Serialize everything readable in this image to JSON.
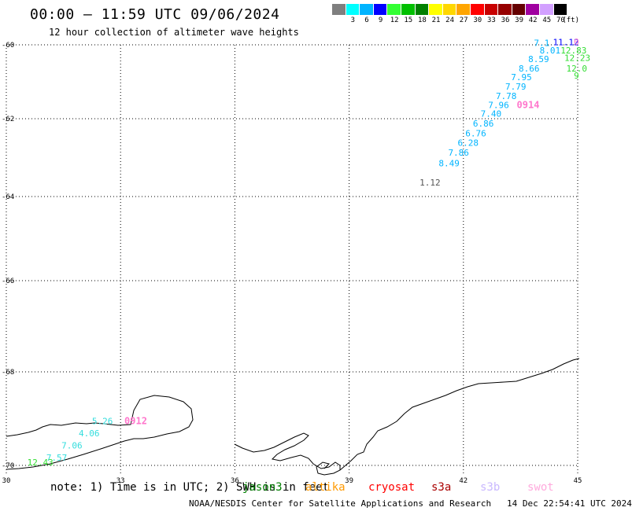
{
  "header": {
    "title": "00:00 – 11:59 UTC 09/06/2024",
    "subtitle": "12 hour collection of altimeter wave heights"
  },
  "legend": {
    "unit": "(ft)",
    "bins": [
      {
        "label": "",
        "color": "#7f7f7f"
      },
      {
        "label": "3",
        "color": "#00ffff"
      },
      {
        "label": "6",
        "color": "#00b4ff"
      },
      {
        "label": "9",
        "color": "#0000ff"
      },
      {
        "label": "12",
        "color": "#33ff33"
      },
      {
        "label": "15",
        "color": "#00c000"
      },
      {
        "label": "18",
        "color": "#008000"
      },
      {
        "label": "21",
        "color": "#ffff00"
      },
      {
        "label": "24",
        "color": "#ffd700"
      },
      {
        "label": "27",
        "color": "#ffa500"
      },
      {
        "label": "30",
        "color": "#ff0000"
      },
      {
        "label": "33",
        "color": "#c80000"
      },
      {
        "label": "36",
        "color": "#960000"
      },
      {
        "label": "39",
        "color": "#640000"
      },
      {
        "label": "42",
        "color": "#a000a0"
      },
      {
        "label": "45",
        "color": "#d2a0ff"
      },
      {
        "label": "70",
        "color": "#000000"
      }
    ]
  },
  "axes": {
    "lon_ticks": [
      "30",
      "33",
      "36",
      "39",
      "42",
      "45"
    ],
    "lat_ticks": [
      "-60",
      "-62",
      "-64",
      "-66",
      "-68",
      "-70"
    ]
  },
  "map": {
    "lon_range": [
      30,
      45
    ],
    "lat_range": [
      -70,
      -60
    ],
    "coastline_color": "#000000",
    "wave_labels": [
      {
        "text": "7.1",
        "lon": 43.85,
        "lat": -60.03,
        "color": "#00b4ff"
      },
      {
        "text": "11.12",
        "lon": 44.35,
        "lat": -60.01,
        "color": "#0000ff"
      },
      {
        "text": "0",
        "lon": 44.9,
        "lat": -60.0,
        "color": "#ff77cc"
      },
      {
        "text": "8.01",
        "lon": 44.0,
        "lat": -60.23,
        "color": "#00b4ff"
      },
      {
        "text": "12.83",
        "lon": 44.55,
        "lat": -60.23,
        "color": "#33dd33"
      },
      {
        "text": "8.59",
        "lon": 43.7,
        "lat": -60.47,
        "color": "#00b4ff"
      },
      {
        "text": "12.23",
        "lon": 44.65,
        "lat": -60.44,
        "color": "#33dd33"
      },
      {
        "text": "8.66",
        "lon": 43.45,
        "lat": -60.72,
        "color": "#00b4ff"
      },
      {
        "text": "12.0",
        "lon": 44.7,
        "lat": -60.72,
        "color": "#33dd33"
      },
      {
        "text": "7.95",
        "lon": 43.25,
        "lat": -60.96,
        "color": "#00b4ff"
      },
      {
        "text": "9",
        "lon": 44.9,
        "lat": -60.92,
        "color": "#33dd33"
      },
      {
        "text": "7.79",
        "lon": 43.1,
        "lat": -61.21,
        "color": "#00b4ff"
      },
      {
        "text": "7.78",
        "lon": 42.85,
        "lat": -61.47,
        "color": "#00b4ff"
      },
      {
        "text": "7.96",
        "lon": 42.65,
        "lat": -61.71,
        "color": "#00b4ff"
      },
      {
        "text": "0914",
        "lon": 43.4,
        "lat": -61.71,
        "color": "#ff77cc"
      },
      {
        "text": "7.40",
        "lon": 42.45,
        "lat": -61.95,
        "color": "#00b4ff"
      },
      {
        "text": "6.86",
        "lon": 42.25,
        "lat": -62.2,
        "color": "#00b4ff"
      },
      {
        "text": "6.76",
        "lon": 42.05,
        "lat": -62.45,
        "color": "#00b4ff"
      },
      {
        "text": "6.28",
        "lon": 41.85,
        "lat": -62.7,
        "color": "#00b4ff"
      },
      {
        "text": "7.86",
        "lon": 41.6,
        "lat": -62.95,
        "color": "#00b4ff"
      },
      {
        "text": "8.49",
        "lon": 41.35,
        "lat": -63.22,
        "color": "#00b4ff"
      },
      {
        "text": "1.12",
        "lon": 40.85,
        "lat": -63.72,
        "color": "#555555"
      },
      {
        "text": "5.26",
        "lon": 32.25,
        "lat": -69.12,
        "color": "#33dddd"
      },
      {
        "text": "0912",
        "lon": 33.1,
        "lat": -69.12,
        "color": "#ff77cc"
      },
      {
        "text": "4.06",
        "lon": 31.9,
        "lat": -69.38,
        "color": "#33dddd"
      },
      {
        "text": "7.06",
        "lon": 31.45,
        "lat": -69.64,
        "color": "#33dddd"
      },
      {
        "text": "7.57",
        "lon": 31.05,
        "lat": -69.9,
        "color": "#33dddd"
      },
      {
        "text": "12.43",
        "lon": 30.55,
        "lat": -70.16,
        "color": "#33dd33"
      }
    ]
  },
  "note": "note: 1) Time is in UTC; 2) SWH is in feet",
  "satellites": [
    {
      "name": "jason3",
      "color": "#008000"
    },
    {
      "name": "altika",
      "color": "#ff9900"
    },
    {
      "name": "cryosat",
      "color": "#ff0000"
    },
    {
      "name": "s3a",
      "color": "#aa0000"
    },
    {
      "name": "s3b",
      "color": "#c9b8ff"
    },
    {
      "name": "swot",
      "color": "#ffaadd"
    }
  ],
  "footer": {
    "agency": "NOAA/NESDIS Center for Satellite Applications and Research",
    "timestamp": "14 Dec 22:54:41 UTC 2024"
  }
}
